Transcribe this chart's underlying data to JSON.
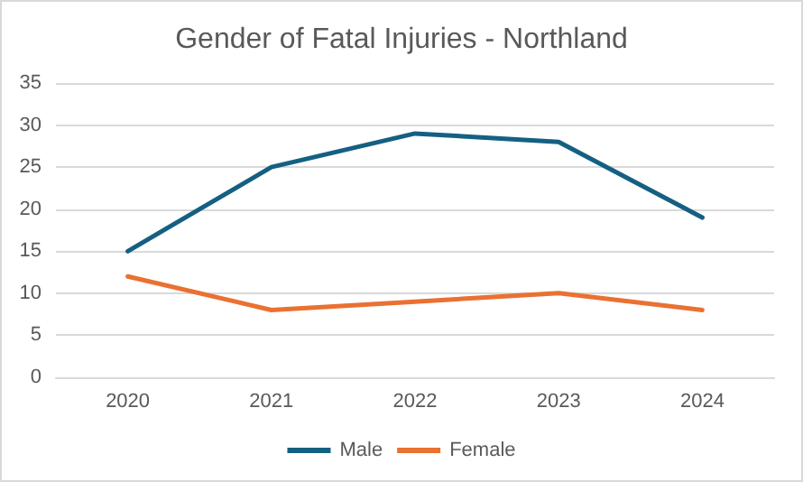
{
  "chart_data": {
    "type": "line",
    "title": "Gender of Fatal Injuries - Northland",
    "categories": [
      "2020",
      "2021",
      "2022",
      "2023",
      "2024"
    ],
    "series": [
      {
        "name": "Male",
        "color": "#156082",
        "values": [
          15,
          25,
          29,
          28,
          19
        ]
      },
      {
        "name": "Female",
        "color": "#e97132",
        "values": [
          12,
          8,
          9,
          10,
          8
        ]
      }
    ],
    "ylim": [
      0,
      35
    ],
    "yticks": [
      0,
      5,
      10,
      15,
      20,
      25,
      30,
      35
    ],
    "grid": "y",
    "legend": "bottom",
    "marker": "none",
    "line_style": "solid"
  }
}
